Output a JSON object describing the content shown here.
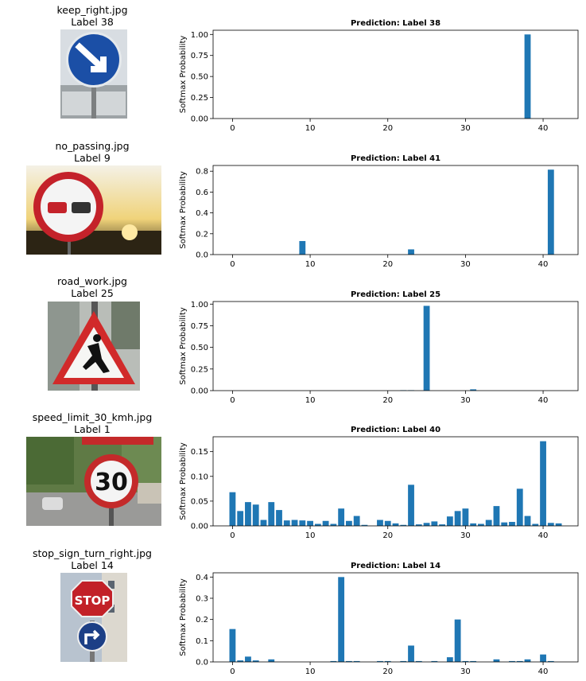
{
  "chart_data": [
    {
      "type": "bar",
      "file": "keep_right.jpg",
      "true_label": "Label 38",
      "title": "Prediction: Label 38",
      "title_color": "#008000",
      "ylabel": "Softmax Probability",
      "x": [
        38
      ],
      "values": [
        1.0
      ],
      "xlim": [
        -2.5,
        44.5
      ],
      "ylim": [
        0,
        1.05
      ],
      "xticks": [
        0,
        10,
        20,
        30,
        40
      ],
      "yticks": [
        "0.00",
        "0.25",
        "0.50",
        "0.75",
        "1.00"
      ],
      "ytick_values": [
        0,
        0.25,
        0.5,
        0.75,
        1.0
      ],
      "bar_color": "#1f77b4"
    },
    {
      "type": "bar",
      "file": "no_passing.jpg",
      "true_label": "Label 9",
      "title": "Prediction: Label 41",
      "title_color": "#ff0000",
      "ylabel": "Softmax Probability",
      "x": [
        9,
        23,
        41
      ],
      "values": [
        0.13,
        0.05,
        0.815
      ],
      "xlim": [
        -2.5,
        44.5
      ],
      "ylim": [
        0,
        0.855
      ],
      "xticks": [
        0,
        10,
        20,
        30,
        40
      ],
      "yticks": [
        "0.0",
        "0.2",
        "0.4",
        "0.6",
        "0.8"
      ],
      "ytick_values": [
        0,
        0.2,
        0.4,
        0.6,
        0.8
      ],
      "bar_color": "#1f77b4"
    },
    {
      "type": "bar",
      "file": "road_work.jpg",
      "true_label": "Label 25",
      "title": "Prediction: Label 25",
      "title_color": "#008000",
      "ylabel": "Softmax Probability",
      "x": [
        22,
        23,
        25,
        31
      ],
      "values": [
        0.005,
        0.005,
        0.98,
        0.015
      ],
      "xlim": [
        -2.5,
        44.5
      ],
      "ylim": [
        0,
        1.03
      ],
      "xticks": [
        0,
        10,
        20,
        30,
        40
      ],
      "yticks": [
        "0.00",
        "0.25",
        "0.50",
        "0.75",
        "1.00"
      ],
      "ytick_values": [
        0,
        0.25,
        0.5,
        0.75,
        1.0
      ],
      "bar_color": "#1f77b4"
    },
    {
      "type": "bar",
      "file": "speed_limit_30_kmh.jpg",
      "true_label": "Label 1",
      "title": "Prediction: Label 40",
      "title_color": "#ff0000",
      "ylabel": "Softmax Probability",
      "x": [
        0,
        1,
        2,
        3,
        4,
        5,
        6,
        7,
        8,
        9,
        10,
        11,
        12,
        13,
        14,
        15,
        16,
        17,
        18,
        19,
        20,
        21,
        22,
        23,
        24,
        25,
        26,
        27,
        28,
        29,
        30,
        31,
        32,
        33,
        34,
        35,
        36,
        37,
        38,
        39,
        40,
        41,
        42
      ],
      "values": [
        0.068,
        0.03,
        0.048,
        0.043,
        0.012,
        0.048,
        0.032,
        0.011,
        0.012,
        0.011,
        0.01,
        0.004,
        0.01,
        0.004,
        0.035,
        0.01,
        0.02,
        0.002,
        0.0,
        0.012,
        0.01,
        0.005,
        0.002,
        0.083,
        0.003,
        0.006,
        0.009,
        0.003,
        0.019,
        0.03,
        0.035,
        0.005,
        0.004,
        0.012,
        0.04,
        0.007,
        0.008,
        0.075,
        0.02,
        0.004,
        0.171,
        0.006,
        0.005
      ],
      "xlim": [
        -2.5,
        44.5
      ],
      "ylim": [
        0,
        0.18
      ],
      "xticks": [
        0,
        10,
        20,
        30,
        40
      ],
      "yticks": [
        "0.00",
        "0.05",
        "0.10",
        "0.15"
      ],
      "ytick_values": [
        0,
        0.05,
        0.1,
        0.15
      ],
      "bar_color": "#1f77b4"
    },
    {
      "type": "bar",
      "file": "stop_sign_turn_right.jpg",
      "true_label": "Label 14",
      "title": "Prediction: Label 14",
      "title_color": "#008000",
      "ylabel": "Softmax Probability",
      "x": [
        0,
        1,
        2,
        3,
        5,
        13,
        14,
        15,
        16,
        19,
        20,
        22,
        23,
        24,
        26,
        28,
        29,
        30,
        31,
        34,
        36,
        37,
        38,
        40,
        41
      ],
      "values": [
        0.155,
        0.007,
        0.025,
        0.007,
        0.012,
        0.004,
        0.4,
        0.004,
        0.004,
        0.004,
        0.004,
        0.004,
        0.077,
        0.004,
        0.004,
        0.022,
        0.2,
        0.004,
        0.004,
        0.012,
        0.004,
        0.004,
        0.012,
        0.035,
        0.004
      ],
      "xlim": [
        -2.5,
        44.5
      ],
      "ylim": [
        0,
        0.42
      ],
      "xticks": [
        0,
        10,
        20,
        30,
        40
      ],
      "yticks": [
        "0.0",
        "0.1",
        "0.2",
        "0.3",
        "0.4"
      ],
      "ytick_values": [
        0,
        0.1,
        0.2,
        0.3,
        0.4
      ],
      "bar_color": "#1f77b4"
    }
  ]
}
